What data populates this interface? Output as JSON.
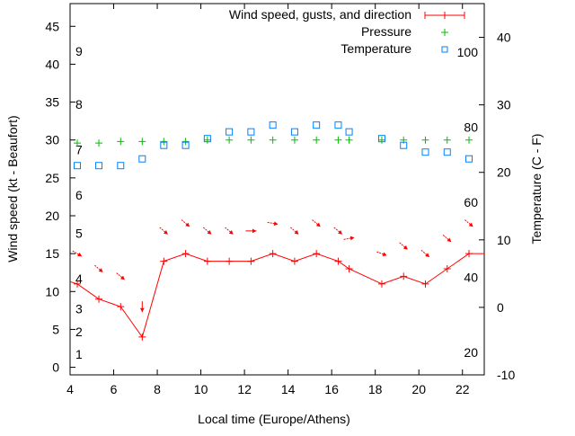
{
  "chart_data": {
    "type": "line",
    "xlabel": "Local time (Europe/Athens)",
    "ylabel": "Wind speed (kt - Beaufort)",
    "y2label": "Temperature (C - F)",
    "xlim": [
      4,
      23
    ],
    "ylim": [
      -1,
      48
    ],
    "y2lim": [
      -10,
      45
    ],
    "x_ticks": [
      4,
      6,
      8,
      10,
      12,
      14,
      16,
      18,
      20,
      22
    ],
    "y_ticks": [
      0,
      5,
      10,
      15,
      20,
      25,
      30,
      35,
      40,
      45
    ],
    "y2_ticks": [
      -10,
      0,
      10,
      20,
      30,
      40
    ],
    "beaufort_labels": [
      {
        "label": "1",
        "kt": 1
      },
      {
        "label": "2",
        "kt": 4
      },
      {
        "label": "3",
        "kt": 7
      },
      {
        "label": "4",
        "kt": 11
      },
      {
        "label": "5",
        "kt": 17
      },
      {
        "label": "6",
        "kt": 22
      },
      {
        "label": "7",
        "kt": 28
      },
      {
        "label": "8",
        "kt": 34
      },
      {
        "label": "9",
        "kt": 41
      }
    ],
    "fahrenheit_labels": [
      {
        "label": "20",
        "f": 20
      },
      {
        "label": "40",
        "f": 40
      },
      {
        "label": "60",
        "f": 60
      },
      {
        "label": "80",
        "f": 80
      },
      {
        "label": "100",
        "f": 100
      }
    ],
    "legend": {
      "position": "top-right",
      "entries": [
        "Wind speed, gusts, and direction",
        "Pressure",
        "Temperature"
      ]
    },
    "x": [
      4.33,
      5.32,
      6.32,
      7.31,
      8.3,
      9.3,
      10.3,
      11.3,
      12.3,
      13.3,
      14.3,
      15.3,
      16.3,
      16.8,
      18.3,
      19.3,
      20.3,
      21.3,
      22.3
    ],
    "series": [
      {
        "name": "Wind speed",
        "color": "#ff0000",
        "axis": "y",
        "values": [
          11,
          9,
          8,
          4,
          14,
          15,
          14,
          14,
          14,
          15,
          14,
          15,
          14,
          13,
          11,
          12,
          11,
          13,
          15
        ]
      },
      {
        "name": "Gusts",
        "color": "#ff0000",
        "axis": "y",
        "values": [
          15,
          13,
          12,
          8,
          18,
          19,
          18,
          18,
          18,
          19,
          18,
          19,
          18,
          17,
          15,
          16,
          15,
          17,
          19
        ],
        "arrow_heading_deg": [
          120,
          130,
          130,
          180,
          130,
          130,
          130,
          130,
          90,
          100,
          130,
          130,
          130,
          80,
          110,
          130,
          130,
          130,
          130
        ]
      },
      {
        "name": "Pressure",
        "color": "#00c000",
        "axis": "y",
        "values": [
          29.6,
          29.6,
          29.8,
          29.8,
          29.8,
          29.8,
          30,
          30,
          30,
          30,
          30,
          30,
          30,
          30,
          30,
          30,
          30,
          30,
          30
        ]
      },
      {
        "name": "Temperature",
        "color": "#0080ff",
        "axis": "y2",
        "values": [
          21,
          21,
          21,
          22,
          24,
          24,
          25,
          26,
          26,
          27,
          26,
          27,
          27,
          26,
          25,
          24,
          23,
          23,
          22
        ]
      }
    ]
  }
}
